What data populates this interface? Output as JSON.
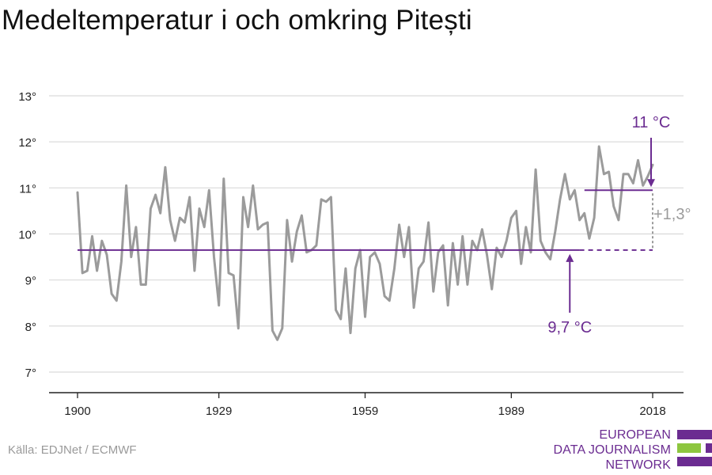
{
  "title": "Medeltemperatur i och omkring Pitești",
  "source": "Källa: EDJNet / ECMWF",
  "logo": {
    "line1": "EUROPEAN",
    "line2": "DATA JOURNALISM",
    "line3": "NETWORK"
  },
  "colors": {
    "series": "#9b9b9b",
    "baseline": "#6b2c91",
    "grid": "#d9d9d9",
    "axis": "#222222",
    "diff": "#9b9b9b"
  },
  "chart_data": {
    "type": "line",
    "xlim": [
      1900,
      2018
    ],
    "ylim": [
      7,
      13
    ],
    "yticks": [
      7,
      8,
      9,
      10,
      11,
      12,
      13
    ],
    "ytick_labels": [
      "7°",
      "8°",
      "9°",
      "10°",
      "11°",
      "12°",
      "13°"
    ],
    "xticks": [
      1900,
      1929,
      1959,
      1989,
      2018
    ],
    "xtick_labels": [
      "1900",
      "1929",
      "1959",
      "1989",
      "2018"
    ],
    "grid": true,
    "series": [
      {
        "x": [
          1900,
          1901,
          1902,
          1903,
          1904,
          1905,
          1906,
          1907,
          1908,
          1909,
          1910,
          1911,
          1912,
          1913,
          1914,
          1915,
          1916,
          1917,
          1918,
          1919,
          1920,
          1921,
          1922,
          1923,
          1924,
          1925,
          1926,
          1927,
          1928,
          1929,
          1930,
          1931,
          1932,
          1933,
          1934,
          1935,
          1936,
          1937,
          1938,
          1939,
          1940,
          1941,
          1942,
          1943,
          1944,
          1945,
          1946,
          1947,
          1948,
          1949,
          1950,
          1951,
          1952,
          1953,
          1954,
          1955,
          1956,
          1957,
          1958,
          1959,
          1960,
          1961,
          1962,
          1963,
          1964,
          1965,
          1966,
          1967,
          1968,
          1969,
          1970,
          1971,
          1972,
          1973,
          1974,
          1975,
          1976,
          1977,
          1978,
          1979,
          1980,
          1981,
          1982,
          1983,
          1984,
          1985,
          1986,
          1987,
          1988,
          1989,
          1990,
          1991,
          1992,
          1993,
          1994,
          1995,
          1996,
          1997,
          1998,
          1999,
          2000,
          2001,
          2002,
          2003,
          2004,
          2005,
          2006,
          2007,
          2008,
          2009,
          2010,
          2011,
          2012,
          2013,
          2014,
          2015,
          2016,
          2017,
          2018
        ],
        "values": [
          10.9,
          9.15,
          9.2,
          9.95,
          9.2,
          9.85,
          9.55,
          8.7,
          8.55,
          9.4,
          11.05,
          9.5,
          10.15,
          8.9,
          8.9,
          10.55,
          10.85,
          10.45,
          11.45,
          10.3,
          9.85,
          10.35,
          10.25,
          10.8,
          9.2,
          10.55,
          10.15,
          10.95,
          9.5,
          8.45,
          11.2,
          9.15,
          9.1,
          7.95,
          10.8,
          10.15,
          11.05,
          10.1,
          10.2,
          10.25,
          7.9,
          7.7,
          7.95,
          10.3,
          9.4,
          10.05,
          10.4,
          9.6,
          9.65,
          9.75,
          10.75,
          10.7,
          10.8,
          8.35,
          8.15,
          9.25,
          7.85,
          9.25,
          9.65,
          8.2,
          9.5,
          9.6,
          9.35,
          8.65,
          8.55,
          9.25,
          10.2,
          9.5,
          10.15,
          8.4,
          9.25,
          9.4,
          10.25,
          8.75,
          9.6,
          9.75,
          8.45,
          9.8,
          8.9,
          9.95,
          8.9,
          9.85,
          9.65,
          10.1,
          9.55,
          8.8,
          9.7,
          9.5,
          9.85,
          10.35,
          10.5,
          9.35,
          10.15,
          9.6,
          11.4,
          9.85,
          9.6,
          9.45,
          10.05,
          10.75,
          11.3,
          10.75,
          10.95,
          10.3,
          10.45,
          9.9,
          10.35,
          11.9,
          11.3,
          11.35,
          10.6,
          10.3,
          11.3,
          11.3,
          11.1,
          11.6,
          11.05,
          11.25,
          11.5
        ]
      }
    ],
    "baseline": {
      "from": 1900,
      "to": 2018,
      "value": 9.65,
      "dashed_from": 2003
    },
    "recent": {
      "from": 2004,
      "to": 2018,
      "value": 10.95
    },
    "annotations": {
      "recent_label": "11 °C",
      "baseline_label": "9,7 °C",
      "diff_label": "+1,3°"
    }
  }
}
